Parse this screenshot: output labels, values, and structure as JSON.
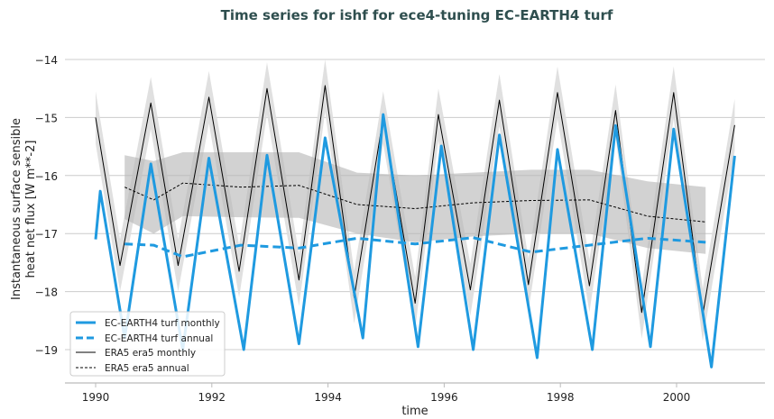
{
  "chart_data": {
    "type": "line",
    "title": "Time series for ishf for ece4-tuning EC-EARTH4 turf",
    "xlabel": "time",
    "ylabel_lines": [
      "Instantaneous surface sensible",
      "heat net flux [W m**-2]"
    ],
    "xlim": [
      1989.5,
      2001.5
    ],
    "ylim": [
      -19.57,
      -13.6
    ],
    "x_ticks": [
      1990,
      1992,
      1994,
      1996,
      1998,
      2000
    ],
    "x_tick_labels": [
      "1990",
      "1992",
      "1994",
      "1996",
      "1998",
      "2000"
    ],
    "y_ticks": [
      -14,
      -15,
      -16,
      -17,
      -18,
      -19
    ],
    "y_tick_labels": [
      "−14",
      "−15",
      "−16",
      "−17",
      "−18",
      "−19"
    ],
    "grid": "horizontal",
    "legend_position": "bottom-left",
    "colors": {
      "ecearth": "#1f9ae0",
      "era5": "#000000",
      "monthly_band": "#dddddd",
      "annual_band": "#b4b4b4",
      "title": "#2f4f4f",
      "grid": "#cccccc"
    },
    "series": [
      {
        "name": "EC-EARTH4 turf monthly",
        "style": "solid-thick",
        "color": "#1f9ae0",
        "x": [
          1990.0,
          1990.08,
          1990.5,
          1990.95,
          1991.5,
          1991.95,
          1992.55,
          1992.95,
          1993.5,
          1993.95,
          1994.6,
          1994.95,
          1995.55,
          1995.95,
          1996.5,
          1996.95,
          1997.6,
          1997.95,
          1998.55,
          1998.95,
          1999.55,
          1999.95,
          2000.6,
          2001.0
        ],
        "y": [
          -17.1,
          -16.27,
          -18.8,
          -15.8,
          -19.0,
          -15.7,
          -19.0,
          -15.65,
          -18.9,
          -15.35,
          -18.8,
          -14.95,
          -18.95,
          -15.49,
          -19.0,
          -15.3,
          -19.14,
          -15.55,
          -19.0,
          -15.14,
          -18.95,
          -15.2,
          -19.3,
          -15.66
        ]
      },
      {
        "name": "EC-EARTH4 turf annual",
        "style": "dashed-thick",
        "color": "#1f9ae0",
        "x": [
          1990.5,
          1991.0,
          1991.5,
          1992.5,
          1993.5,
          1994.5,
          1995.5,
          1996.5,
          1997.5,
          1998.5,
          1999.5,
          2000.5
        ],
        "y": [
          -17.18,
          -17.2,
          -17.4,
          -17.2,
          -17.25,
          -17.08,
          -17.18,
          -17.07,
          -17.32,
          -17.2,
          -17.08,
          -17.15
        ]
      },
      {
        "name": "ERA5 era5 monthly",
        "style": "solid-thin",
        "color": "#000000",
        "x": [
          1990.0,
          1990.42,
          1990.95,
          1991.42,
          1991.95,
          1992.47,
          1992.95,
          1993.5,
          1993.95,
          1994.45,
          1994.95,
          1995.5,
          1995.9,
          1996.45,
          1996.95,
          1997.45,
          1997.95,
          1998.5,
          1998.95,
          1999.4,
          1999.95,
          2000.45,
          2001.0
        ],
        "y": [
          -15.0,
          -17.55,
          -14.75,
          -17.55,
          -14.65,
          -17.65,
          -14.5,
          -17.8,
          -14.45,
          -18.1,
          -15.0,
          -18.2,
          -14.95,
          -17.97,
          -14.7,
          -17.88,
          -14.57,
          -17.9,
          -14.88,
          -18.36,
          -14.57,
          -18.4,
          -15.13
        ],
        "band_halfwidth": 0.45
      },
      {
        "name": "ERA5 era5 annual",
        "style": "dashed-thin",
        "color": "#000000",
        "x": [
          1990.5,
          1991.0,
          1991.5,
          1992.5,
          1993.5,
          1994.5,
          1995.5,
          1996.5,
          1997.5,
          1998.5,
          1999.5,
          2000.5
        ],
        "y": [
          -16.2,
          -16.42,
          -16.13,
          -16.2,
          -16.17,
          -16.5,
          -16.57,
          -16.47,
          -16.43,
          -16.42,
          -16.7,
          -16.8
        ],
        "band_upper": [
          -15.65,
          -15.75,
          -15.6,
          -15.6,
          -15.6,
          -15.95,
          -16.0,
          -15.95,
          -15.9,
          -15.9,
          -16.1,
          -16.2
        ],
        "band_lower": [
          -16.75,
          -17.0,
          -16.7,
          -16.72,
          -16.73,
          -17.0,
          -17.15,
          -17.05,
          -17.0,
          -17.0,
          -17.25,
          -17.35
        ]
      }
    ]
  }
}
